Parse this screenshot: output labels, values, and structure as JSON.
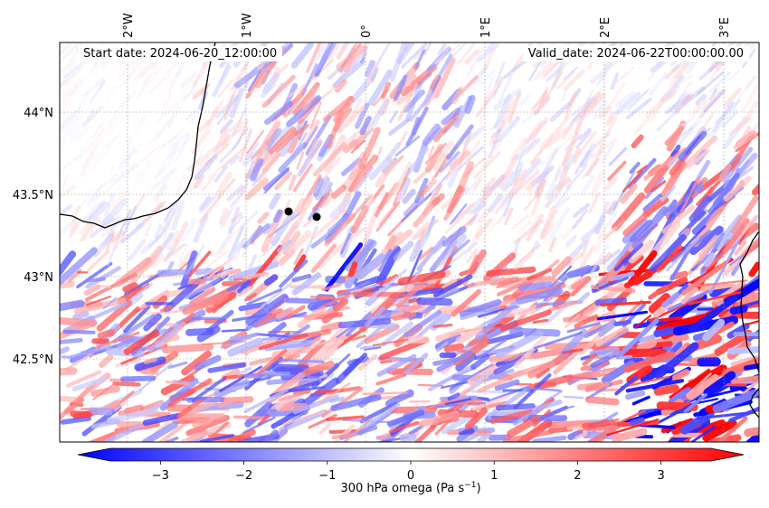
{
  "map": {
    "start_label": "Start date: 2024-06-20_12:00:00",
    "valid_label": "Valid_date: 2024-06-22T00:00:00.00",
    "colormap": [
      "#0000ff",
      "#ffffff",
      "#ff0000"
    ],
    "land_line_color": "#000000",
    "grid": true,
    "lon_ticks": [
      "2°W",
      "1°W",
      "0°",
      "1°E",
      "2°E",
      "3°E"
    ],
    "lat_ticks": [
      "44°N",
      "43.5°N",
      "43°N",
      "42.5°N"
    ],
    "points": [
      {
        "name": "point-1"
      },
      {
        "name": "point-2"
      }
    ]
  },
  "colorbar": {
    "label": "300 hPa omega (Pa s",
    "label_sup": "−1",
    "label_end": ")",
    "min": -3.6,
    "max": 3.6,
    "ticks": [
      {
        "value": -3,
        "text": "−3"
      },
      {
        "value": -2,
        "text": "−2"
      },
      {
        "value": -1,
        "text": "−1"
      },
      {
        "value": 0,
        "text": "0"
      },
      {
        "value": 1,
        "text": "1"
      },
      {
        "value": 2,
        "text": "2"
      },
      {
        "value": 3,
        "text": "3"
      }
    ]
  }
}
